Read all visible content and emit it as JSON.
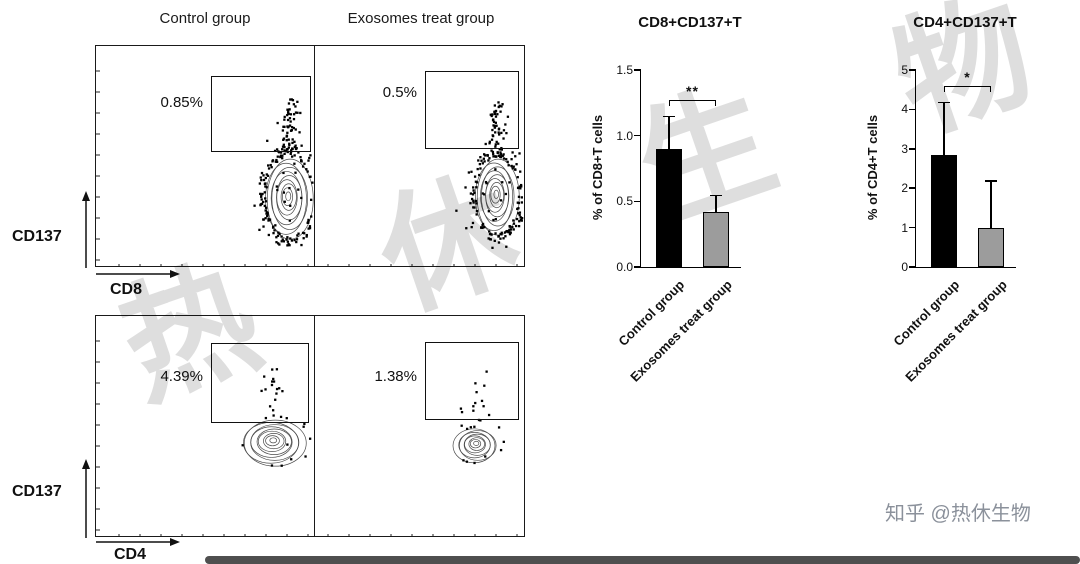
{
  "watermark": {
    "text": "热 休 生 物",
    "color": "#d0d0d0"
  },
  "attribution": {
    "text": "知乎 @热休生物",
    "color": "#8b919b"
  },
  "flow_panel": {
    "col_headers": [
      "Control group",
      "Exosomes treat group"
    ],
    "rows": [
      {
        "y_label": "CD137",
        "x_label": "CD8",
        "plots": [
          {
            "gate_pct": "0.85%"
          },
          {
            "gate_pct": "0.5%"
          }
        ]
      },
      {
        "y_label": "CD137",
        "x_label": "CD4",
        "plots": [
          {
            "gate_pct": "4.39%"
          },
          {
            "gate_pct": "1.38%"
          }
        ]
      }
    ]
  },
  "chart_data": [
    {
      "type": "bar",
      "title": "CD8+CD137+T",
      "ylabel": "% of CD8+T cells",
      "xlabel": "",
      "categories": [
        "Control group",
        "Exosomes treat group"
      ],
      "values": [
        0.9,
        0.42
      ],
      "errors": [
        0.25,
        0.13
      ],
      "ylim": [
        0,
        1.5
      ],
      "yticks": [
        0,
        0.5,
        1.0,
        1.5
      ],
      "ytick_labels": [
        "0.0",
        "0.5",
        "1.0",
        "1.5"
      ],
      "significance": "**",
      "bar_colors": [
        "#000000",
        "#9c9c9c"
      ],
      "grid": false,
      "legend": "none"
    },
    {
      "type": "bar",
      "title": "CD4+CD137+T",
      "ylabel": "% of CD4+T cells",
      "xlabel": "",
      "categories": [
        "Control group",
        "Exosomes treat group"
      ],
      "values": [
        2.85,
        1.0
      ],
      "errors": [
        1.35,
        1.2
      ],
      "ylim": [
        0,
        5
      ],
      "yticks": [
        0,
        1,
        2,
        3,
        4,
        5
      ],
      "ytick_labels": [
        "0",
        "1",
        "2",
        "3",
        "4",
        "5"
      ],
      "significance": "*",
      "bar_colors": [
        "#000000",
        "#9c9c9c"
      ],
      "grid": false,
      "legend": "none"
    }
  ]
}
